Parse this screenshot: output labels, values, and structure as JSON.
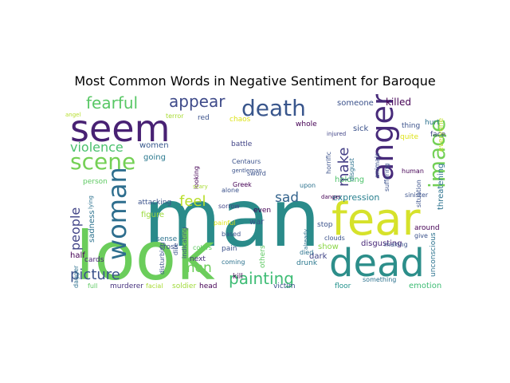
{
  "title": "Most Common Words in Negative Sentiment for Baroque",
  "words": [
    {
      "text": "man",
      "color": "#2a8b8a"
    },
    {
      "text": "look",
      "color": "#6bcd5b"
    },
    {
      "text": "fear",
      "color": "#d6e22b"
    },
    {
      "text": "dead",
      "color": "#2c8e8a"
    },
    {
      "text": "seem",
      "color": "#482173"
    },
    {
      "text": "scene",
      "color": "#74d055"
    },
    {
      "text": "death",
      "color": "#39568c"
    },
    {
      "text": "anger",
      "color": "#472a7a"
    },
    {
      "text": "image",
      "color": "#73d056"
    },
    {
      "text": "woman",
      "color": "#2e6e8e"
    },
    {
      "text": "fearful",
      "color": "#58c765"
    },
    {
      "text": "appear",
      "color": "#3e4a89"
    },
    {
      "text": "violence",
      "color": "#4ac16d"
    },
    {
      "text": "picture",
      "color": "#3b528b"
    },
    {
      "text": "painting",
      "color": "#3dbc74"
    },
    {
      "text": "people",
      "color": "#414487"
    },
    {
      "text": "make",
      "color": "#433e85"
    },
    {
      "text": "feel",
      "color": "#b8de29"
    },
    {
      "text": "sad",
      "color": "#33638d"
    },
    {
      "text": "men",
      "color": "#6ccd5a"
    },
    {
      "text": "expression",
      "color": "#277f8e"
    },
    {
      "text": "killed",
      "color": "#440154"
    },
    {
      "text": "someone",
      "color": "#3b518b"
    },
    {
      "text": "women",
      "color": "#38598c"
    },
    {
      "text": "figure",
      "color": "#9bd93c"
    },
    {
      "text": "going",
      "color": "#2a788e"
    },
    {
      "text": "holding",
      "color": "#4ec36b"
    },
    {
      "text": "disgusting",
      "color": "#482878"
    },
    {
      "text": "dark",
      "color": "#414487"
    },
    {
      "text": "show",
      "color": "#8bd646"
    },
    {
      "text": "war",
      "color": "#3b528b"
    },
    {
      "text": "sadness",
      "color": "#2c728e"
    },
    {
      "text": "attacking",
      "color": "#3b528b"
    },
    {
      "text": "cards",
      "color": "#482475"
    },
    {
      "text": "half",
      "color": "#440154"
    },
    {
      "text": "emotion",
      "color": "#3dbc74"
    },
    {
      "text": "floor",
      "color": "#21918c"
    },
    {
      "text": "victim",
      "color": "#3b528b"
    },
    {
      "text": "kill",
      "color": "#440154"
    },
    {
      "text": "soldier",
      "color": "#a0da39"
    },
    {
      "text": "murderer",
      "color": "#46327e"
    },
    {
      "text": "head",
      "color": "#440154"
    },
    {
      "text": "facial",
      "color": "#a8db34"
    },
    {
      "text": "full",
      "color": "#5ec962"
    },
    {
      "text": "dagger",
      "color": "#2d708e"
    },
    {
      "text": "next",
      "color": "#472d7b"
    },
    {
      "text": "cross",
      "color": "#3b528b"
    },
    {
      "text": "sense",
      "color": "#2c728e"
    },
    {
      "text": "coming",
      "color": "#2c728e"
    },
    {
      "text": "pain",
      "color": "#3b528b"
    },
    {
      "text": "based",
      "color": "#3b528b"
    },
    {
      "text": "painful",
      "color": "#dde318"
    },
    {
      "text": "alone",
      "color": "#3b528b"
    },
    {
      "text": "sorrow",
      "color": "#414487"
    },
    {
      "text": "even",
      "color": "#440154"
    },
    {
      "text": "others",
      "color": "#5ec962"
    },
    {
      "text": "died",
      "color": "#2c728e"
    },
    {
      "text": "drunk",
      "color": "#2a788e"
    },
    {
      "text": "stop",
      "color": "#3b528b"
    },
    {
      "text": "around",
      "color": "#440154"
    },
    {
      "text": "making",
      "color": "#3b528b"
    },
    {
      "text": "give",
      "color": "#3b528b"
    },
    {
      "text": "something",
      "color": "#2c728e"
    },
    {
      "text": "unconscious",
      "color": "#2c728e"
    },
    {
      "text": "threatening",
      "color": "#2c728e"
    },
    {
      "text": "everyone",
      "color": "#bddf26"
    },
    {
      "text": "situation",
      "color": "#3b528b"
    },
    {
      "text": "sinister",
      "color": "#3b528b"
    },
    {
      "text": "human",
      "color": "#440154"
    },
    {
      "text": "thing",
      "color": "#3b528b"
    },
    {
      "text": "quite",
      "color": "#dde318"
    },
    {
      "text": "hurt",
      "color": "#2c728e"
    },
    {
      "text": "face",
      "color": "#414487"
    },
    {
      "text": "sick",
      "color": "#3b528b"
    },
    {
      "text": "injured",
      "color": "#414487"
    },
    {
      "text": "whole",
      "color": "#440154"
    },
    {
      "text": "red",
      "color": "#3b528b"
    },
    {
      "text": "chaos",
      "color": "#dde318"
    },
    {
      "text": "terror",
      "color": "#a8db34"
    },
    {
      "text": "angel",
      "color": "#b5de2b"
    },
    {
      "text": "Greek",
      "color": "#440154"
    },
    {
      "text": "battle",
      "color": "#414487"
    },
    {
      "text": "Centaurs",
      "color": "#3b528b"
    },
    {
      "text": "gentleman",
      "color": "#3b528b"
    },
    {
      "text": "sword",
      "color": "#3b528b"
    },
    {
      "text": "upon",
      "color": "#2c728e"
    },
    {
      "text": "disgust",
      "color": "#2c728e"
    },
    {
      "text": "horrific",
      "color": "#3b528b"
    },
    {
      "text": "animals",
      "color": "#3b528b"
    },
    {
      "text": "danger",
      "color": "#440154"
    },
    {
      "text": "clouds",
      "color": "#3b528b"
    },
    {
      "text": "suffering",
      "color": "#3b528b"
    },
    {
      "text": "already",
      "color": "#2c728e"
    },
    {
      "text": "colors",
      "color": "#5ec962"
    },
    {
      "text": "indicating",
      "color": "#3b528b"
    },
    {
      "text": "dire",
      "color": "#3b528b"
    },
    {
      "text": "disturbing",
      "color": "#3b528b"
    },
    {
      "text": "looking",
      "color": "#440154"
    },
    {
      "text": "person",
      "color": "#5ec962"
    },
    {
      "text": "scary",
      "color": "#a8db34"
    },
    {
      "text": "lying",
      "color": "#2c728e"
    }
  ]
}
